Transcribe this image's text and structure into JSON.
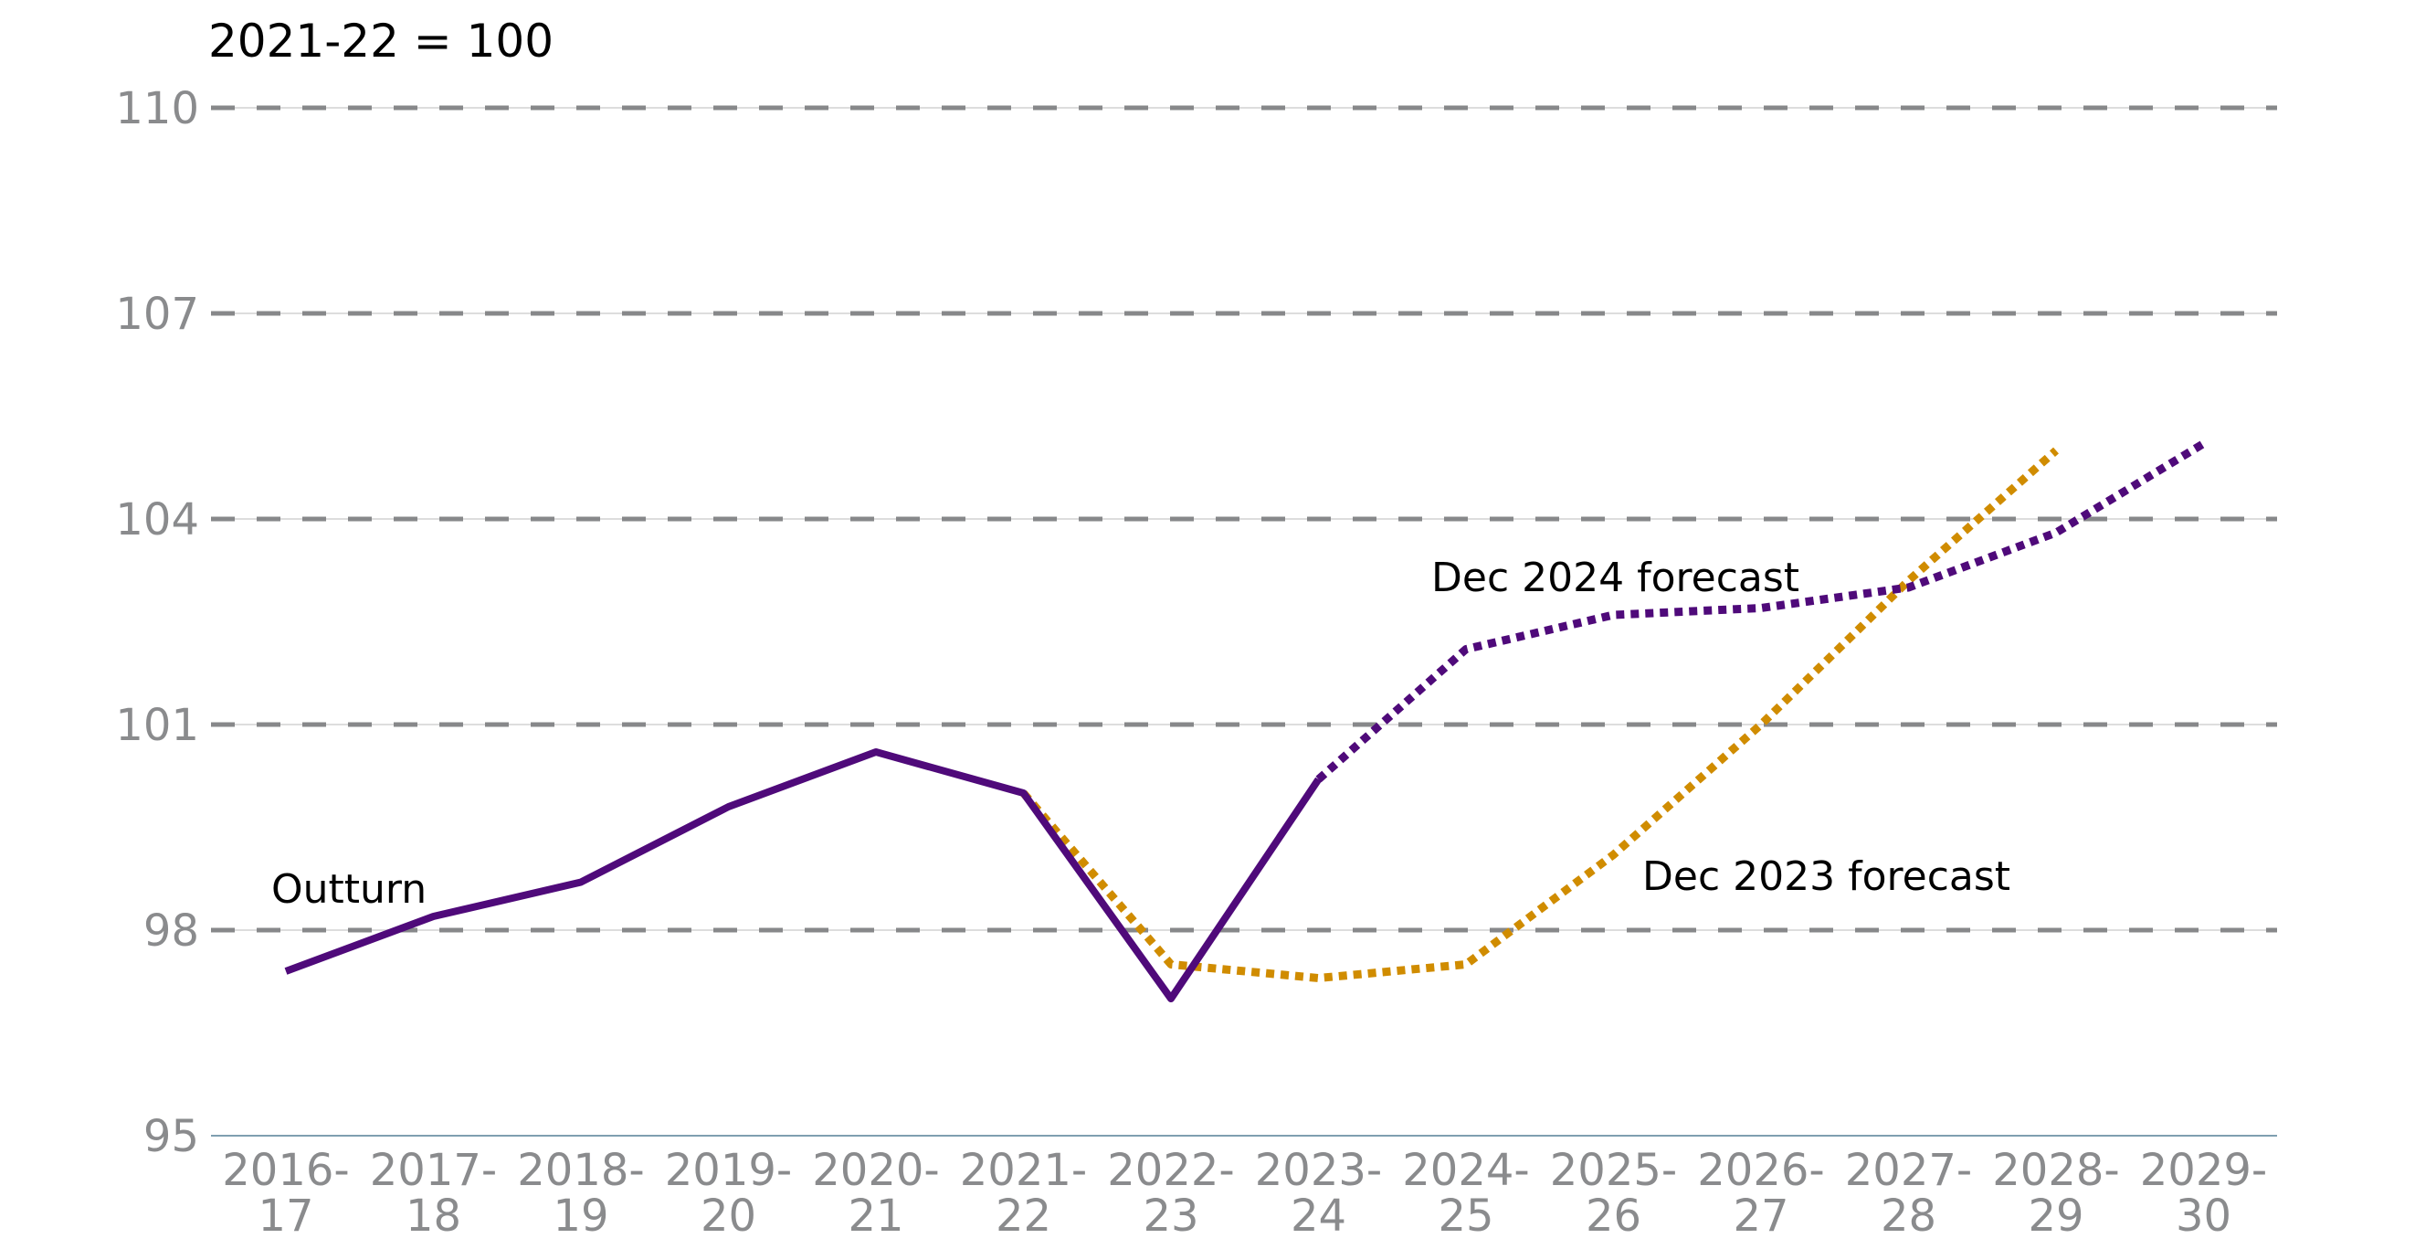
{
  "chart_data": {
    "type": "line",
    "title": "",
    "ylabel": "2021-22 = 100",
    "xlabel": "",
    "ylim": [
      95,
      110
    ],
    "yticks": [
      95,
      98,
      101,
      104,
      107,
      110
    ],
    "grid": "horizontal dashed",
    "categories": [
      [
        "2016-",
        "17"
      ],
      [
        "2017-",
        "18"
      ],
      [
        "2018-",
        "19"
      ],
      [
        "2019-",
        "20"
      ],
      [
        "2020-",
        "21"
      ],
      [
        "2021-",
        "22"
      ],
      [
        "2022-",
        "23"
      ],
      [
        "2023-",
        "24"
      ],
      [
        "2024-",
        "25"
      ],
      [
        "2025-",
        "26"
      ],
      [
        "2026-",
        "27"
      ],
      [
        "2027-",
        "28"
      ],
      [
        "2028-",
        "29"
      ],
      [
        "2029-",
        "30"
      ]
    ],
    "series": [
      {
        "name": "Outturn",
        "color": "#4f0a7a",
        "style": "solid",
        "values": [
          97.4,
          98.2,
          98.7,
          99.8,
          100.6,
          100.0,
          97.0,
          100.2,
          null,
          null,
          null,
          null,
          null,
          null
        ]
      },
      {
        "name": "Dec 2024 forecast",
        "color": "#4f0a7a",
        "style": "dotted",
        "values": [
          null,
          null,
          null,
          null,
          null,
          null,
          null,
          100.2,
          102.1,
          102.6,
          102.7,
          103.0,
          103.8,
          105.1
        ]
      },
      {
        "name": "Dec 2023 forecast",
        "color": "#d08c00",
        "style": "dotted",
        "values": [
          null,
          null,
          null,
          null,
          null,
          100.0,
          97.5,
          97.3,
          97.5,
          99.1,
          101.0,
          103.1,
          105.0,
          null
        ]
      }
    ]
  }
}
